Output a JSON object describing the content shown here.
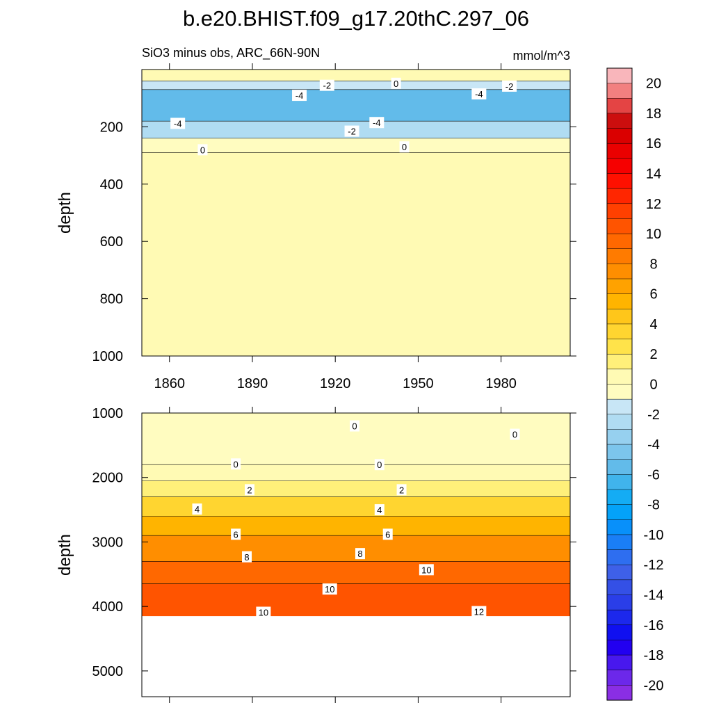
{
  "chart_data": [
    {
      "type": "heatmap",
      "panel": "upper",
      "title": "b.e20.BHIST.f09_g17.20thC.297_06",
      "subtitle_left": "SiO3 minus obs, ARC_66N-90N",
      "subtitle_right": "mmol/m^3",
      "ylabel": "depth",
      "xlim": [
        1850,
        2005
      ],
      "ylim": [
        1000,
        0
      ],
      "x_ticks": [
        1860,
        1890,
        1920,
        1950,
        1980
      ],
      "x_tick_labels": [
        "1860",
        "1890",
        "1920",
        "1950",
        "1980"
      ],
      "y_ticks": [
        200,
        400,
        600,
        800,
        1000
      ],
      "y_tick_labels": [
        "200",
        "400",
        "600",
        "800",
        "1000"
      ],
      "depth_bands": [
        {
          "top": 0,
          "bottom": 40,
          "value": 0.5
        },
        {
          "top": 40,
          "bottom": 70,
          "value": -1
        },
        {
          "top": 70,
          "bottom": 180,
          "value": -5
        },
        {
          "top": 180,
          "bottom": 240,
          "value": -2
        },
        {
          "top": 240,
          "bottom": 290,
          "value": -0.5
        },
        {
          "top": 290,
          "bottom": 1000,
          "value": 0.5
        }
      ],
      "contour_labels": [
        {
          "text": "-2",
          "x": 1917,
          "y": 55
        },
        {
          "text": "0",
          "x": 1942,
          "y": 48
        },
        {
          "text": "-4",
          "x": 1907,
          "y": 90
        },
        {
          "text": "-4",
          "x": 1972,
          "y": 85
        },
        {
          "text": "-2",
          "x": 1983,
          "y": 58
        },
        {
          "text": "-4",
          "x": 1863,
          "y": 188
        },
        {
          "text": "-4",
          "x": 1935,
          "y": 185
        },
        {
          "text": "-2",
          "x": 1926,
          "y": 215
        },
        {
          "text": "0",
          "x": 1872,
          "y": 280
        },
        {
          "text": "0",
          "x": 1945,
          "y": 270
        }
      ]
    },
    {
      "type": "heatmap",
      "panel": "lower",
      "ylabel": "depth",
      "xlim": [
        1850,
        2005
      ],
      "ylim": [
        5400,
        1000
      ],
      "y_ticks": [
        1000,
        2000,
        3000,
        4000,
        5000
      ],
      "y_tick_labels": [
        "1000",
        "2000",
        "3000",
        "4000",
        "5000"
      ],
      "data_bottom_depth": 4150,
      "depth_bands": [
        {
          "top": 1000,
          "bottom": 1800,
          "value": -0.5
        },
        {
          "top": 1800,
          "bottom": 2050,
          "value": 0.5
        },
        {
          "top": 2050,
          "bottom": 2300,
          "value": 2
        },
        {
          "top": 2300,
          "bottom": 2600,
          "value": 3.5
        },
        {
          "top": 2600,
          "bottom": 2900,
          "value": 5.5
        },
        {
          "top": 2900,
          "bottom": 3300,
          "value": 7.5
        },
        {
          "top": 3300,
          "bottom": 3650,
          "value": 9.5
        },
        {
          "top": 3650,
          "bottom": 4150,
          "value": 11
        }
      ],
      "contour_labels": [
        {
          "text": "0",
          "x": 1927,
          "y": 1200
        },
        {
          "text": "0",
          "x": 1985,
          "y": 1330
        },
        {
          "text": "0",
          "x": 1884,
          "y": 1790
        },
        {
          "text": "0",
          "x": 1936,
          "y": 1800
        },
        {
          "text": "2",
          "x": 1889,
          "y": 2190
        },
        {
          "text": "2",
          "x": 1944,
          "y": 2190
        },
        {
          "text": "4",
          "x": 1870,
          "y": 2490
        },
        {
          "text": "4",
          "x": 1936,
          "y": 2500
        },
        {
          "text": "6",
          "x": 1884,
          "y": 2880
        },
        {
          "text": "6",
          "x": 1939,
          "y": 2880
        },
        {
          "text": "8",
          "x": 1888,
          "y": 3230
        },
        {
          "text": "8",
          "x": 1929,
          "y": 3180
        },
        {
          "text": "10",
          "x": 1953,
          "y": 3430
        },
        {
          "text": "10",
          "x": 1918,
          "y": 3730
        },
        {
          "text": "10",
          "x": 1894,
          "y": 4090
        },
        {
          "text": "12",
          "x": 1972,
          "y": 4080
        }
      ]
    }
  ],
  "colorbar": {
    "ticks": [
      "20",
      "18",
      "16",
      "14",
      "12",
      "10",
      "8",
      "6",
      "4",
      "2",
      "0",
      "-2",
      "-4",
      "-6",
      "-8",
      "-10",
      "-12",
      "-14",
      "-16",
      "-18",
      "-20"
    ],
    "colors": [
      "#f9b6bb",
      "#f28080",
      "#e44444",
      "#cc0e0e",
      "#da0000",
      "#ea0000",
      "#f60000",
      "#ff1000",
      "#ff2600",
      "#ff4000",
      "#ff5400",
      "#ff6800",
      "#ff7b00",
      "#ff8e00",
      "#ffa200",
      "#ffb400",
      "#ffc61a",
      "#ffd530",
      "#ffe34a",
      "#fff07a",
      "#fffab4",
      "#fffcc0",
      "#c8e6f6",
      "#b0dcf2",
      "#96d0ef",
      "#7cc5ec",
      "#62bbea",
      "#40b4ec",
      "#14acf4",
      "#04a2f8",
      "#0890fa",
      "#1a7ef6",
      "#2e6ef0",
      "#3e60e8",
      "#3450e6",
      "#2a3ee8",
      "#1c28ec",
      "#1010f0",
      "#2200f0",
      "#4818ee",
      "#6c28ea",
      "#8a2ee4"
    ]
  }
}
